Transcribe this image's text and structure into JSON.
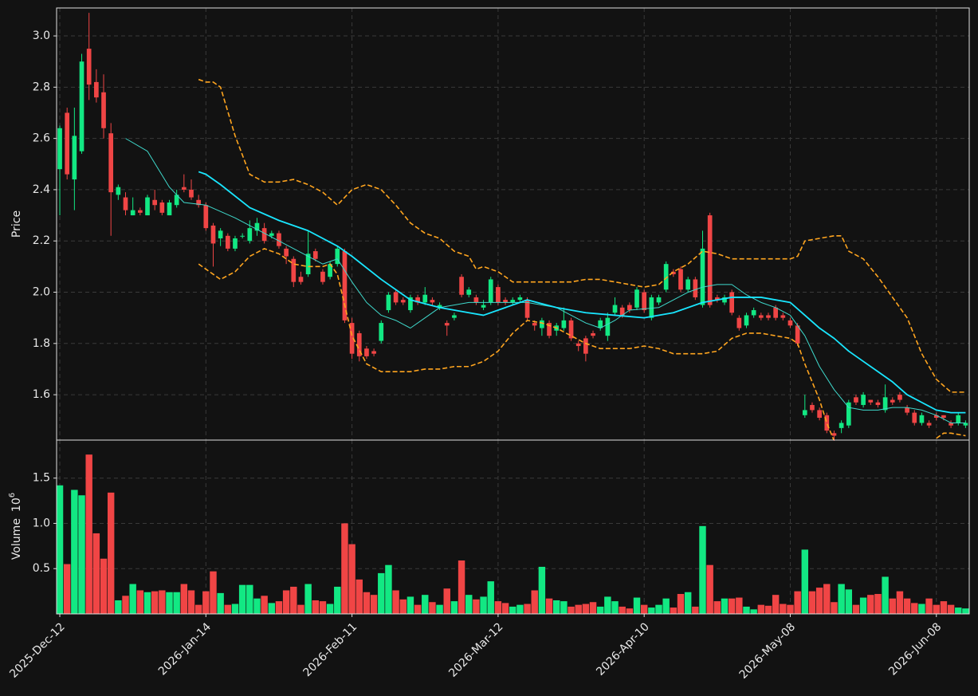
{
  "chart_data": {
    "type": "candlestick",
    "ylabel": "Price",
    "volume_ylabel": "Volume",
    "volume_multiplier": {
      "base": "10",
      "exponent": "6"
    },
    "up_color": "#12e883",
    "down_color": "#f04545",
    "grid": true,
    "xlim": [
      -0.44,
      124.5
    ],
    "ylim": [
      1.423,
      3.109
    ],
    "yticks": [
      1.6,
      1.8,
      {
        "value": 2,
        "label": "2.0"
      },
      2.2,
      2.4,
      2.6,
      2.8,
      {
        "value": 3,
        "label": "3.0"
      }
    ],
    "volume_ylim": [
      0,
      1.92
    ],
    "volume_yticks": [
      0.5,
      {
        "value": 1,
        "label": "1.0"
      },
      1.5
    ],
    "categories": [
      "2025-Dec-12",
      null,
      null,
      null,
      null,
      null,
      null,
      null,
      null,
      null,
      null,
      null,
      null,
      null,
      null,
      null,
      null,
      null,
      null,
      null,
      "2026-Jan-14",
      null,
      null,
      null,
      null,
      null,
      null,
      null,
      null,
      null,
      null,
      null,
      null,
      null,
      null,
      null,
      null,
      null,
      null,
      null,
      "2026-Feb-11",
      null,
      null,
      null,
      null,
      null,
      null,
      null,
      null,
      null,
      null,
      null,
      null,
      null,
      null,
      null,
      null,
      null,
      null,
      null,
      "2026-Mar-12",
      null,
      null,
      null,
      null,
      null,
      null,
      null,
      null,
      null,
      null,
      null,
      null,
      null,
      null,
      null,
      null,
      null,
      null,
      null,
      "2026-Apr-10",
      null,
      null,
      null,
      null,
      null,
      null,
      null,
      null,
      null,
      null,
      null,
      null,
      null,
      null,
      null,
      null,
      null,
      null,
      null,
      "2026-May-08",
      null,
      null,
      null,
      null,
      null,
      null,
      null,
      null,
      null,
      null,
      null,
      null,
      null,
      null,
      null,
      null,
      null,
      null,
      null,
      "2026-Jun-08",
      null,
      null,
      null,
      null
    ],
    "open": [
      2.48,
      2.7,
      2.44,
      2.55,
      2.95,
      2.82,
      2.78,
      2.62,
      2.38,
      2.37,
      2.3,
      2.32,
      2.3,
      2.36,
      2.35,
      2.3,
      2.34,
      2.41,
      2.4,
      2.36,
      2.34,
      2.26,
      2.21,
      2.22,
      2.17,
      2.22,
      2.2,
      2.24,
      2.25,
      2.22,
      2.23,
      2.17,
      2.13,
      2.06,
      2.07,
      2.16,
      2.08,
      2.06,
      2.11,
      2.16,
      1.88,
      1.84,
      1.78,
      1.77,
      1.81,
      1.93,
      2.0,
      1.97,
      1.93,
      1.98,
      1.96,
      1.97,
      1.94,
      1.88,
      1.9,
      2.06,
      1.99,
      1.98,
      1.94,
      1.96,
      2.02,
      1.97,
      1.96,
      1.97,
      1.97,
      1.88,
      1.86,
      1.88,
      1.85,
      1.86,
      1.89,
      1.8,
      1.82,
      1.84,
      1.86,
      1.83,
      1.92,
      1.94,
      1.95,
      1.94,
      2.0,
      1.9,
      1.96,
      2.01,
      2.08,
      2.09,
      2.01,
      2.05,
      1.95,
      2.3,
      1.98,
      1.96,
      2.0,
      1.9,
      1.87,
      1.91,
      1.91,
      1.91,
      1.94,
      1.91,
      1.89,
      1.87,
      1.52,
      1.56,
      1.54,
      1.52,
      1.45,
      1.47,
      1.48,
      1.59,
      1.56,
      1.58,
      1.57,
      1.54,
      1.58,
      1.6,
      1.55,
      1.53,
      1.49,
      1.49,
      1.52,
      1.52,
      1.49,
      1.49,
      1.48
    ],
    "high": [
      2.65,
      2.72,
      2.72,
      2.93,
      3.09,
      2.87,
      2.85,
      2.66,
      2.42,
      2.39,
      2.37,
      2.33,
      2.38,
      2.4,
      2.36,
      2.36,
      2.4,
      2.46,
      2.44,
      2.38,
      2.35,
      2.27,
      2.25,
      2.23,
      2.22,
      2.23,
      2.28,
      2.29,
      2.27,
      2.24,
      2.24,
      2.18,
      2.14,
      2.08,
      2.24,
      2.17,
      2.09,
      2.12,
      2.18,
      2.17,
      1.9,
      1.85,
      1.79,
      1.78,
      1.89,
      2.0,
      2.01,
      1.98,
      1.99,
      1.99,
      2.02,
      1.98,
      1.96,
      1.89,
      1.92,
      2.07,
      2.02,
      1.99,
      1.97,
      2.06,
      2.03,
      1.98,
      1.98,
      1.99,
      1.98,
      1.89,
      1.9,
      1.89,
      1.88,
      1.94,
      1.9,
      1.81,
      1.83,
      1.85,
      1.9,
      1.92,
      1.98,
      1.95,
      1.96,
      2.02,
      2.01,
      1.99,
      1.99,
      2.12,
      2.09,
      2.1,
      2.06,
      2.06,
      2.24,
      2.31,
      1.99,
      1.99,
      2.01,
      1.91,
      1.92,
      1.94,
      1.92,
      1.92,
      1.95,
      1.92,
      1.9,
      1.88,
      1.6,
      1.57,
      1.55,
      1.53,
      1.46,
      1.5,
      1.58,
      1.6,
      1.61,
      1.58,
      1.58,
      1.64,
      1.59,
      1.61,
      1.56,
      1.54,
      1.53,
      1.5,
      1.53,
      1.52,
      1.5,
      1.53,
      1.5
    ],
    "low": [
      2.3,
      2.44,
      2.32,
      2.54,
      2.75,
      2.74,
      2.6,
      2.22,
      2.36,
      2.3,
      2.3,
      2.3,
      2.3,
      2.32,
      2.3,
      2.3,
      2.33,
      2.39,
      2.36,
      2.33,
      2.24,
      2.1,
      2.18,
      2.16,
      2.16,
      2.21,
      2.19,
      2.22,
      2.19,
      2.21,
      2.17,
      2.11,
      2.02,
      2.03,
      2.06,
      2.12,
      2.03,
      2.05,
      2.1,
      1.88,
      1.74,
      1.73,
      1.74,
      1.75,
      1.8,
      1.92,
      1.95,
      1.95,
      1.92,
      1.95,
      1.95,
      1.95,
      1.93,
      1.83,
      1.89,
      1.98,
      1.98,
      1.95,
      1.93,
      1.95,
      1.95,
      1.95,
      1.95,
      1.96,
      1.89,
      1.85,
      1.83,
      1.82,
      1.83,
      1.85,
      1.81,
      1.77,
      1.73,
      1.82,
      1.85,
      1.81,
      1.91,
      1.9,
      1.92,
      1.93,
      1.92,
      1.89,
      1.95,
      2.0,
      2.06,
      2.0,
      2.0,
      1.97,
      1.94,
      1.94,
      1.96,
      1.95,
      1.91,
      1.85,
      1.86,
      1.9,
      1.89,
      1.89,
      1.89,
      1.89,
      1.86,
      1.79,
      1.51,
      1.53,
      1.5,
      1.45,
      1.42,
      1.45,
      1.47,
      1.56,
      1.55,
      1.56,
      1.55,
      1.53,
      1.56,
      1.57,
      1.52,
      1.48,
      1.48,
      1.47,
      1.5,
      1.5,
      1.47,
      1.48,
      1.47
    ],
    "close": [
      2.64,
      2.46,
      2.61,
      2.9,
      2.81,
      2.76,
      2.64,
      2.39,
      2.41,
      2.32,
      2.32,
      2.31,
      2.37,
      2.34,
      2.31,
      2.35,
      2.38,
      2.4,
      2.37,
      2.34,
      2.25,
      2.19,
      2.24,
      2.17,
      2.21,
      2.22,
      2.25,
      2.27,
      2.2,
      2.23,
      2.18,
      2.14,
      2.04,
      2.04,
      2.15,
      2.13,
      2.04,
      2.11,
      2.17,
      1.89,
      1.76,
      1.75,
      1.75,
      1.76,
      1.88,
      1.99,
      1.96,
      1.96,
      1.98,
      1.96,
      1.99,
      1.96,
      1.95,
      1.87,
      1.91,
      1.99,
      2.01,
      1.96,
      1.95,
      2.05,
      1.96,
      1.96,
      1.97,
      1.98,
      1.9,
      1.87,
      1.89,
      1.83,
      1.87,
      1.89,
      1.82,
      1.79,
      1.76,
      1.83,
      1.89,
      1.9,
      1.95,
      1.91,
      1.93,
      2.01,
      1.93,
      1.98,
      1.98,
      2.11,
      2.07,
      2.01,
      2.05,
      1.98,
      2.17,
      1.95,
      1.97,
      1.98,
      1.92,
      1.86,
      1.91,
      1.93,
      1.9,
      1.9,
      1.9,
      1.9,
      1.87,
      1.8,
      1.54,
      1.54,
      1.51,
      1.46,
      1.44,
      1.49,
      1.57,
      1.57,
      1.6,
      1.57,
      1.56,
      1.59,
      1.57,
      1.58,
      1.53,
      1.49,
      1.52,
      1.48,
      1.51,
      1.51,
      1.48,
      1.52,
      1.49
    ],
    "volume": [
      1.42,
      0.55,
      1.37,
      1.31,
      1.76,
      0.89,
      0.61,
      1.34,
      0.15,
      0.2,
      0.33,
      0.26,
      0.24,
      0.25,
      0.26,
      0.24,
      0.24,
      0.33,
      0.26,
      0.1,
      0.25,
      0.47,
      0.23,
      0.1,
      0.11,
      0.32,
      0.32,
      0.17,
      0.2,
      0.12,
      0.14,
      0.26,
      0.3,
      0.1,
      0.33,
      0.15,
      0.14,
      0.11,
      0.3,
      1.0,
      0.77,
      0.38,
      0.24,
      0.21,
      0.45,
      0.54,
      0.26,
      0.16,
      0.19,
      0.1,
      0.21,
      0.13,
      0.1,
      0.28,
      0.14,
      0.59,
      0.21,
      0.16,
      0.19,
      0.36,
      0.14,
      0.12,
      0.08,
      0.1,
      0.11,
      0.26,
      0.52,
      0.17,
      0.15,
      0.14,
      0.08,
      0.1,
      0.11,
      0.13,
      0.08,
      0.19,
      0.14,
      0.08,
      0.06,
      0.18,
      0.1,
      0.07,
      0.1,
      0.17,
      0.07,
      0.22,
      0.24,
      0.08,
      0.97,
      0.54,
      0.14,
      0.17,
      0.17,
      0.18,
      0.08,
      0.05,
      0.1,
      0.09,
      0.21,
      0.11,
      0.1,
      0.25,
      0.71,
      0.25,
      0.29,
      0.33,
      0.13,
      0.33,
      0.27,
      0.1,
      0.18,
      0.21,
      0.22,
      0.41,
      0.17,
      0.25,
      0.17,
      0.12,
      0.11,
      0.17,
      0.1,
      0.14,
      0.1,
      0.07,
      0.06
    ],
    "series": [
      {
        "color": "#3fd9cc",
        "style": "thin",
        "x": [
          9,
          12,
          15,
          17,
          20,
          24,
          28,
          32,
          36,
          38,
          40,
          42,
          44,
          46,
          48,
          50,
          52,
          56,
          60,
          64,
          68,
          70,
          72,
          74,
          76,
          78,
          82,
          84,
          86,
          88,
          90,
          92,
          94,
          96,
          98,
          100,
          102,
          104,
          106,
          108,
          110,
          112,
          114,
          116,
          118,
          120,
          122,
          124
        ],
        "values": [
          2.6,
          2.55,
          2.41,
          2.35,
          2.34,
          2.29,
          2.23,
          2.17,
          2.11,
          2.13,
          2.04,
          1.96,
          1.91,
          1.89,
          1.86,
          1.9,
          1.94,
          1.96,
          1.96,
          1.96,
          1.94,
          1.91,
          1.88,
          1.86,
          1.89,
          1.93,
          1.94,
          1.97,
          2.0,
          2.02,
          2.03,
          2.03,
          1.99,
          1.96,
          1.94,
          1.91,
          1.83,
          1.71,
          1.62,
          1.55,
          1.54,
          1.54,
          1.55,
          1.55,
          1.54,
          1.52,
          1.49,
          1.49
        ]
      },
      {
        "color": "#19e6ff",
        "style": "thick",
        "x": [
          19,
          20,
          22,
          26,
          30,
          34,
          38,
          40,
          44,
          48,
          52,
          56,
          58,
          62,
          64,
          68,
          72,
          76,
          80,
          84,
          88,
          92,
          96,
          100,
          102,
          104,
          106,
          108,
          110,
          112,
          114,
          116,
          118,
          120,
          122,
          124
        ],
        "values": [
          2.47,
          2.46,
          2.42,
          2.33,
          2.28,
          2.24,
          2.18,
          2.14,
          2.05,
          1.97,
          1.94,
          1.92,
          1.91,
          1.95,
          1.97,
          1.94,
          1.92,
          1.91,
          1.9,
          1.92,
          1.96,
          1.98,
          1.98,
          1.96,
          1.91,
          1.86,
          1.82,
          1.77,
          1.73,
          1.69,
          1.65,
          1.6,
          1.57,
          1.54,
          1.53,
          1.53
        ]
      },
      {
        "color": "#ffa51f",
        "style": "dashed",
        "x": [
          19,
          20,
          21,
          22,
          24,
          26,
          28,
          30,
          32,
          34,
          36,
          38,
          40,
          42,
          44,
          46,
          48,
          50,
          52,
          54,
          56,
          57,
          58,
          60,
          62,
          64,
          68,
          70,
          72,
          74,
          76,
          78,
          80,
          82,
          84,
          86,
          88,
          90,
          92,
          96,
          100,
          101,
          102,
          104,
          106,
          107,
          108,
          110,
          112,
          114,
          116,
          118,
          120,
          122,
          123,
          124
        ],
        "values": [
          2.83,
          2.82,
          2.82,
          2.8,
          2.61,
          2.46,
          2.43,
          2.43,
          2.44,
          2.42,
          2.39,
          2.34,
          2.4,
          2.42,
          2.4,
          2.34,
          2.27,
          2.23,
          2.21,
          2.16,
          2.14,
          2.09,
          2.1,
          2.08,
          2.04,
          2.04,
          2.04,
          2.04,
          2.05,
          2.05,
          2.04,
          2.03,
          2.02,
          2.03,
          2.08,
          2.11,
          2.16,
          2.15,
          2.13,
          2.13,
          2.13,
          2.14,
          2.2,
          2.21,
          2.22,
          2.22,
          2.16,
          2.13,
          2.06,
          1.98,
          1.9,
          1.76,
          1.66,
          1.61,
          1.61,
          1.61
        ]
      },
      {
        "color": "#ffa51f",
        "style": "dashed",
        "x": [
          19,
          20,
          22,
          24,
          26,
          28,
          30,
          32,
          34,
          36,
          37,
          38,
          40,
          42,
          44,
          46,
          48,
          50,
          52,
          54,
          56,
          58,
          60,
          62,
          64,
          66,
          68,
          70,
          72,
          74,
          76,
          78,
          80,
          82,
          84,
          86,
          88,
          90,
          92,
          94,
          96,
          98,
          100,
          101,
          102,
          104,
          105,
          106,
          113,
          120,
          121,
          122,
          124
        ],
        "values": [
          2.11,
          2.09,
          2.05,
          2.08,
          2.14,
          2.17,
          2.15,
          2.11,
          2.1,
          2.1,
          2.11,
          2.07,
          1.83,
          1.72,
          1.69,
          1.69,
          1.69,
          1.7,
          1.7,
          1.71,
          1.71,
          1.73,
          1.77,
          1.84,
          1.89,
          1.88,
          1.86,
          1.83,
          1.8,
          1.78,
          1.78,
          1.78,
          1.79,
          1.78,
          1.76,
          1.76,
          1.76,
          1.77,
          1.82,
          1.84,
          1.84,
          1.83,
          1.82,
          1.8,
          1.72,
          1.58,
          1.49,
          1.42,
          null,
          1.43,
          1.45,
          1.45,
          1.44
        ]
      }
    ]
  }
}
